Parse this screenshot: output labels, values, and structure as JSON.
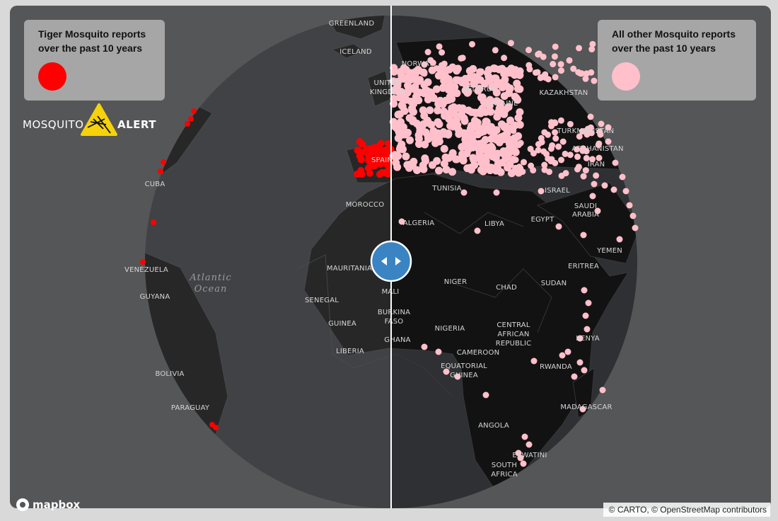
{
  "legends": [
    {
      "title": "Tiger Mosquito reports over the past 10 years"
    },
    {
      "title": "All other Mosquito reports over the past 10 years"
    }
  ],
  "logo": {
    "left": "MOSQUITO",
    "right": "ALERT"
  },
  "map_labels": [
    "GREENLAND",
    "ICELAND",
    "NORWAY",
    "UNITED",
    "KINGDOM",
    "BELARUS",
    "UKRAINE",
    "KAZAKHSTAN",
    "TURKMENISTAN",
    "AFGHANISTAN",
    "IRAN",
    "ISRAEL",
    "SAUDI",
    "ARABIA",
    "YEMEN",
    "ERITREA",
    "SUDAN",
    "EGYPT",
    "LIBYA",
    "TUNISIA",
    "ALGERIA",
    "MOROCCO",
    "SPAIN",
    "CUBA",
    "VENEZUELA",
    "GUYANA",
    "BOLIVIA",
    "PARAGUAY",
    "MAURITANIA",
    "MALI",
    "SENEGAL",
    "GUINEA",
    "LIBERIA",
    "BURKINA",
    "FASO",
    "GHANA",
    "NIGER",
    "NIGERIA",
    "CHAD",
    "CAMEROON",
    "EQUATORIAL",
    "GUINEA",
    "CENTRAL",
    "AFRICAN",
    "REPUBLIC",
    "KENYA",
    "RWANDA",
    "MADAGASCAR",
    "ANGOLA",
    "ESWATINI",
    "SOUTH",
    "AFRICA"
  ],
  "ocean_label": [
    "Atlantic",
    "Ocean"
  ],
  "mapbox": "mapbox",
  "attribution": "© CARTO, © OpenStreetMap contributors"
}
